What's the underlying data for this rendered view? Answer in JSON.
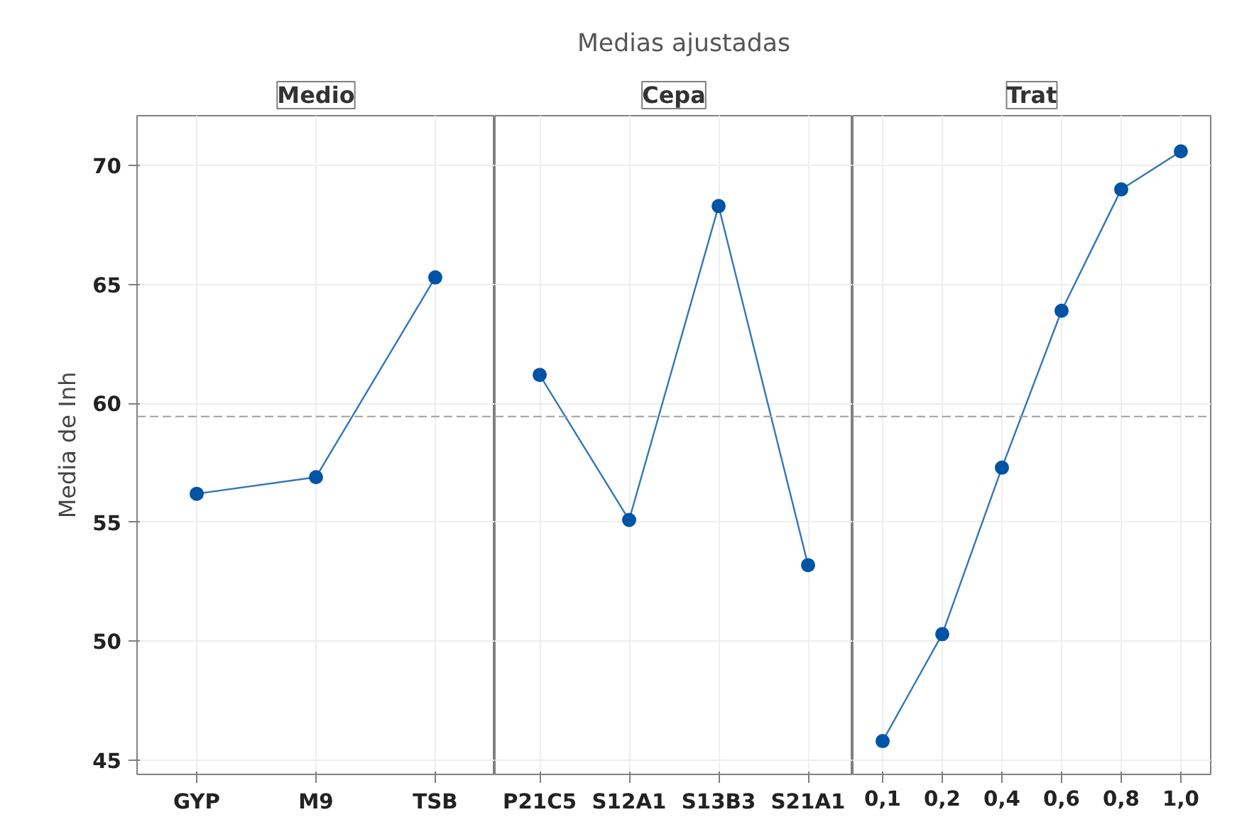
{
  "chart_data": [
    {
      "type": "line",
      "title": "Medio",
      "annotations": [
        "Medias ajustadas"
      ],
      "ylabel": "Media de Inh",
      "categories": [
        "GYP",
        "M9",
        "TSB"
      ],
      "series": [
        {
          "color": "#0054a6",
          "values": [
            56.2,
            56.9,
            65.3
          ]
        }
      ],
      "ylim": [
        44.4,
        72.1
      ],
      "yticks": [
        45,
        50,
        55,
        60,
        65,
        70
      ],
      "grid": true,
      "marker": "circle",
      "line_style": "solid",
      "ref_lines": [
        {
          "axis": "y",
          "value": 59.45,
          "color": "#a0a0a0",
          "line_style": "dashed"
        }
      ]
    },
    {
      "type": "line",
      "title": "Cepa",
      "categories": [
        "P21C5",
        "S12A1",
        "S13B3",
        "S21A1"
      ],
      "series": [
        {
          "color": "#0054a6",
          "values": [
            61.2,
            55.1,
            68.3,
            53.2
          ]
        }
      ],
      "ylim": [
        44.4,
        72.1
      ],
      "yticks": [
        45,
        50,
        55,
        60,
        65,
        70
      ],
      "tick_labels": "x",
      "grid": true,
      "marker": "circle",
      "line_style": "solid",
      "ref_lines": [
        {
          "axis": "y",
          "value": 59.45,
          "color": "#a0a0a0",
          "line_style": "dashed"
        }
      ]
    },
    {
      "type": "line",
      "title": "Trat",
      "categories": [
        "0,1",
        "0,2",
        "0,4",
        "0,6",
        "0,8",
        "1,0"
      ],
      "series": [
        {
          "color": "#0054a6",
          "values": [
            45.8,
            50.3,
            57.3,
            63.9,
            69.0,
            70.6
          ]
        }
      ],
      "ylim": [
        44.4,
        72.1
      ],
      "yticks": [
        45,
        50,
        55,
        60,
        65,
        70
      ],
      "tick_labels": "x",
      "grid": true,
      "marker": "circle",
      "line_style": "solid",
      "ref_lines": [
        {
          "axis": "y",
          "value": 59.45,
          "color": "#a0a0a0",
          "line_style": "dashed"
        }
      ]
    }
  ]
}
